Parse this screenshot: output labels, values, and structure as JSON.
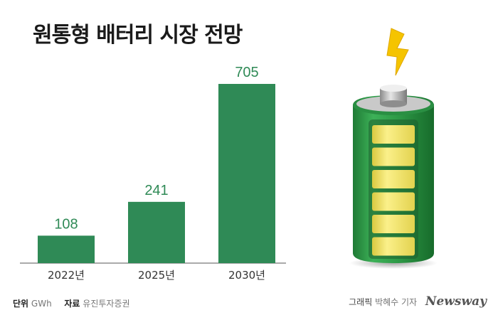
{
  "title": "원통형 배터리 시장 전망",
  "footer": {
    "unit_label": "단위",
    "unit_value": "GWh",
    "source_label": "자료",
    "source_value": "유진투자증권",
    "credit_label": "그래픽",
    "credit_value": "박혜수 기자",
    "logo": "Newsway"
  },
  "icons": {
    "battery": "battery-icon",
    "lightning": "lightning-bolt-icon"
  },
  "colors": {
    "bar": "#2f8a56",
    "value_label": "#2f8a56",
    "battery_body": "#2e9a47",
    "battery_cell": "#f5e66b",
    "bolt": "#f5c400"
  },
  "chart_data": {
    "type": "bar",
    "categories": [
      "2022년",
      "2025년",
      "2030년"
    ],
    "values": [
      108,
      241,
      705
    ],
    "title": "원통형 배터리 시장 전망",
    "unit": "GWh",
    "ylim": [
      0,
      705
    ],
    "grid": false,
    "legend": "none"
  }
}
